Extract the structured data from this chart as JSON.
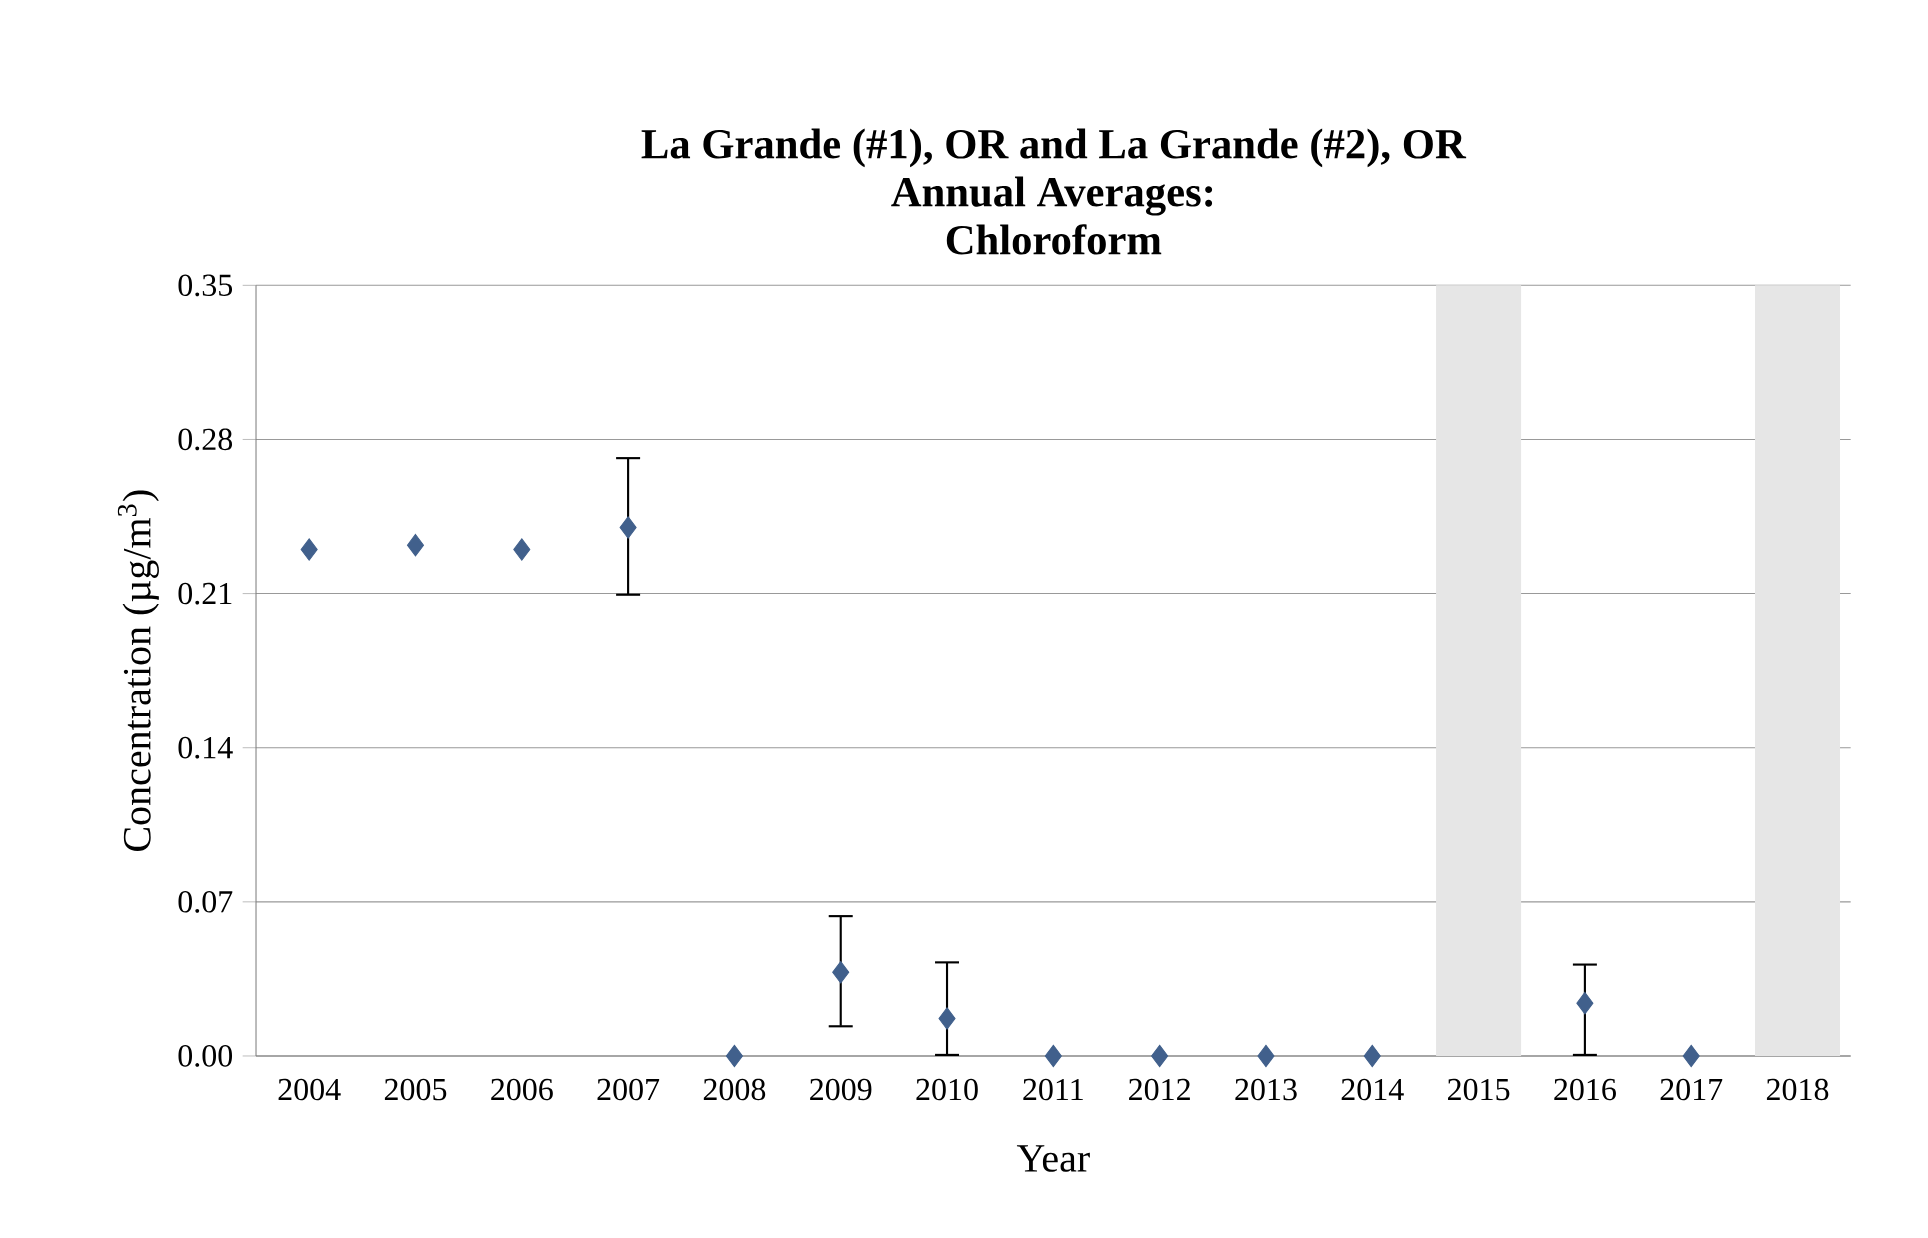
{
  "chart_data": {
    "type": "scatter",
    "title": "La Grande (#1), OR and La Grande (#2), OR\nAnnual Averages:\nChloroform",
    "xlabel": "Year",
    "ylabel": "Concentration (µg/m$^{3}$)",
    "categories": [
      "2004",
      "2005",
      "2006",
      "2007",
      "2008",
      "2009",
      "2010",
      "2011",
      "2012",
      "2013",
      "2014",
      "2015",
      "2016",
      "2017",
      "2018"
    ],
    "series": [
      {
        "color": "#41608c",
        "values": [
          0.23,
          0.232,
          0.23,
          0.24,
          0,
          0.038,
          0.017,
          0,
          0,
          0,
          0,
          null,
          0.024,
          0,
          null
        ],
        "errors": [
          null,
          null,
          null,
          [
            0.209,
            0.272
          ],
          null,
          [
            0.013,
            0.064
          ],
          [
            0,
            0.043
          ],
          null,
          null,
          null,
          null,
          null,
          [
            0,
            0.042
          ],
          null,
          null
        ]
      }
    ],
    "ylim": [
      0,
      0.35
    ],
    "yticks": [
      {
        "value": 0,
        "label": "0.00"
      },
      {
        "value": 0.07,
        "label": "0.07"
      },
      {
        "value": 0.14,
        "label": "0.14"
      },
      {
        "value": 0.21,
        "label": "0.21"
      },
      {
        "value": 0.28,
        "label": "0.28"
      },
      {
        "value": 0.35,
        "label": "0.35"
      }
    ],
    "bands": [
      {
        "axis": "x",
        "from": "2015",
        "to": "2015",
        "color": "#e6e6e6"
      },
      {
        "axis": "x",
        "from": "2018",
        "to": "2018",
        "color": "#e6e6e6"
      }
    ],
    "grid": "y",
    "marker": "diamond"
  }
}
